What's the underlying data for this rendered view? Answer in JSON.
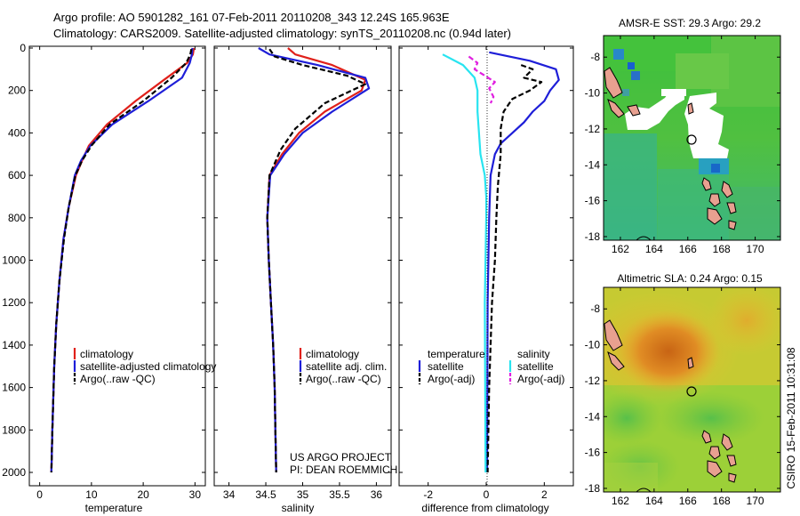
{
  "header": {
    "line1": "Argo profile: AO 5901282_161 07-Feb-2011 20110208_343 12.24S 165.963E",
    "line2": "Climatology: CARS2009. Satellite-adjusted climatology: synTS_20110208.nc (0.94d later)"
  },
  "footer": {
    "project": "US ARGO PROJECT",
    "pi": "PI: DEAN ROEMMICH",
    "stamp": "CSIRO 15-Feb-2011 10:31:08"
  },
  "colors": {
    "red": "#e0201a",
    "blue": "#1e1ed8",
    "black": "#000000",
    "cyan": "#28e4f0",
    "magenta": "#e020e0"
  },
  "chart_data": [
    {
      "type": "line",
      "xlabel": "temperature",
      "xlim": [
        -2,
        32
      ],
      "xticks": [
        0,
        10,
        20,
        30
      ],
      "ylim": [
        0,
        2050
      ],
      "yticks": [
        0,
        200,
        400,
        600,
        800,
        1000,
        1200,
        1400,
        1600,
        1800,
        2000
      ],
      "legend": [
        "climatology",
        "satellite-adjusted climatology",
        "Argo(..raw -QC)"
      ],
      "series": [
        {
          "name": "climatology",
          "color": "red",
          "dash": "",
          "x": [
            29.8,
            29.6,
            28.5,
            24,
            18.5,
            13,
            9.5,
            8.2,
            7.0,
            5.6,
            4.6,
            3.8,
            3.2,
            2.8,
            2.45,
            2.25
          ],
          "y": [
            0,
            30,
            70,
            150,
            250,
            360,
            460,
            530,
            600,
            750,
            900,
            1100,
            1300,
            1500,
            1800,
            2000
          ]
        },
        {
          "name": "satellite-adjusted climatology",
          "color": "blue",
          "dash": "",
          "x": [
            29.5,
            29.4,
            29.0,
            27.5,
            21,
            14,
            9.8,
            8.0,
            6.8,
            5.6,
            4.6,
            3.8,
            3.2,
            2.8,
            2.45,
            2.25
          ],
          "y": [
            0,
            30,
            70,
            140,
            250,
            360,
            460,
            530,
            600,
            750,
            900,
            1100,
            1300,
            1500,
            1800,
            2000
          ]
        },
        {
          "name": "Argo(..raw -QC)",
          "color": "black",
          "dash": "6,3",
          "x": [
            29.3,
            29.1,
            28.3,
            25.5,
            20,
            13.5,
            10,
            8.2,
            6.9,
            5.6,
            4.7,
            3.8,
            3.2,
            2.8,
            2.45,
            2.25
          ],
          "y": [
            5,
            30,
            70,
            140,
            250,
            360,
            460,
            530,
            600,
            750,
            900,
            1100,
            1300,
            1500,
            1800,
            2000
          ]
        }
      ]
    },
    {
      "type": "line",
      "xlabel": "salinity",
      "xlim": [
        33.8,
        36.2
      ],
      "xticks": [
        34,
        34.5,
        35,
        35.5,
        36
      ],
      "ylim": [
        0,
        2050
      ],
      "yticks": [
        0,
        200,
        400,
        600,
        800,
        1000,
        1200,
        1400,
        1600,
        1800,
        2000
      ],
      "legend": [
        "climatology",
        "satellite adj. clim.",
        "Argo(..raw -QC)"
      ],
      "series": [
        {
          "name": "climatology",
          "color": "red",
          "dash": "",
          "x": [
            34.8,
            34.9,
            35.4,
            35.85,
            35.8,
            35.3,
            34.95,
            34.72,
            34.55,
            34.52,
            34.54,
            34.57,
            34.6,
            34.62,
            34.63,
            34.64
          ],
          "y": [
            0,
            30,
            80,
            150,
            200,
            300,
            400,
            500,
            600,
            800,
            1000,
            1200,
            1400,
            1600,
            1800,
            2000
          ]
        },
        {
          "name": "satellite adj. clim.",
          "color": "blue",
          "dash": "",
          "x": [
            34.4,
            34.55,
            35.2,
            35.85,
            35.9,
            35.4,
            35.0,
            34.75,
            34.56,
            34.52,
            34.54,
            34.57,
            34.6,
            34.62,
            34.63,
            34.64
          ],
          "y": [
            0,
            30,
            80,
            140,
            190,
            300,
            400,
            500,
            600,
            800,
            1000,
            1200,
            1400,
            1600,
            1800,
            2000
          ]
        },
        {
          "name": "Argo(..raw -QC)",
          "color": "black",
          "dash": "6,3",
          "x": [
            34.55,
            34.62,
            35.0,
            35.6,
            35.85,
            35.3,
            34.9,
            34.7,
            34.55,
            34.52,
            34.54,
            34.57,
            34.6,
            34.62,
            34.63,
            34.64
          ],
          "y": [
            5,
            40,
            80,
            130,
            170,
            260,
            380,
            480,
            600,
            800,
            1000,
            1200,
            1400,
            1600,
            1800,
            2000
          ]
        }
      ]
    },
    {
      "type": "line",
      "xlabel": "difference from climatology",
      "xlim": [
        -3,
        3
      ],
      "xticks": [
        -2,
        0,
        2
      ],
      "ylim": [
        0,
        2050
      ],
      "yticks": [
        0,
        200,
        400,
        600,
        800,
        1000,
        1200,
        1400,
        1600,
        1800,
        2000
      ],
      "legend_headers": [
        "temperature",
        "salinity"
      ],
      "legend": [
        "satellite",
        "Argo(-adj)",
        "satellite",
        "Argo(-adj)"
      ],
      "series": [
        {
          "name": "satellite",
          "group": "temperature",
          "color": "blue",
          "dash": "",
          "x": [
            0.1,
            1.5,
            2.4,
            2.5,
            2.2,
            2.0,
            1.6,
            1.3,
            0.9,
            0.5,
            0.3,
            0.15,
            0.1,
            0.05,
            0.03
          ],
          "y": [
            20,
            60,
            100,
            150,
            200,
            250,
            300,
            350,
            400,
            450,
            500,
            600,
            800,
            1200,
            2000
          ]
        },
        {
          "name": "Argo(-adj)",
          "group": "temperature",
          "color": "black",
          "dash": "6,3",
          "x": [
            1.2,
            1.6,
            1.3,
            1.9,
            1.5,
            0.9,
            0.6,
            0.5,
            0.5,
            0.4,
            0.35,
            0.3,
            0.2,
            0.1,
            0.05
          ],
          "y": [
            80,
            100,
            140,
            160,
            200,
            240,
            300,
            380,
            500,
            650,
            800,
            1000,
            1200,
            1600,
            2000
          ]
        },
        {
          "name": "satellite",
          "group": "salinity",
          "color": "cyan",
          "dash": "",
          "x": [
            -1.5,
            -0.8,
            -0.4,
            -0.3,
            -0.3,
            -0.2,
            -0.05,
            0,
            0,
            -0.05,
            -0.02
          ],
          "y": [
            30,
            80,
            140,
            200,
            300,
            500,
            600,
            700,
            800,
            1200,
            2000
          ]
        },
        {
          "name": "Argo(-adj)",
          "group": "salinity",
          "color": "magenta",
          "dash": "6,3",
          "x": [
            -0.6,
            -0.3,
            -0.4,
            0.3,
            0.1,
            0.25,
            0.15
          ],
          "y": [
            40,
            70,
            100,
            160,
            190,
            230,
            260
          ]
        }
      ]
    },
    {
      "type": "heatmap",
      "title": "AMSR-E SST: 29.3 Argo: 29.2",
      "xlim": [
        161,
        171.5
      ],
      "xticks": [
        162,
        164,
        166,
        168,
        170
      ],
      "ylim": [
        -18.2,
        -6.8
      ],
      "yticks": [
        -8,
        -10,
        -12,
        -14,
        -16,
        -18
      ],
      "argo_location": {
        "lon": 165.963,
        "lat": -12.24
      }
    },
    {
      "type": "heatmap",
      "title": "Altimetric SLA: 0.24 Argo: 0.15",
      "xlim": [
        161,
        171.5
      ],
      "xticks": [
        162,
        164,
        166,
        168,
        170
      ],
      "ylim": [
        -18.2,
        -6.8
      ],
      "yticks": [
        -8,
        -10,
        -12,
        -14,
        -16,
        -18
      ],
      "argo_location": {
        "lon": 165.963,
        "lat": -12.24
      }
    }
  ]
}
